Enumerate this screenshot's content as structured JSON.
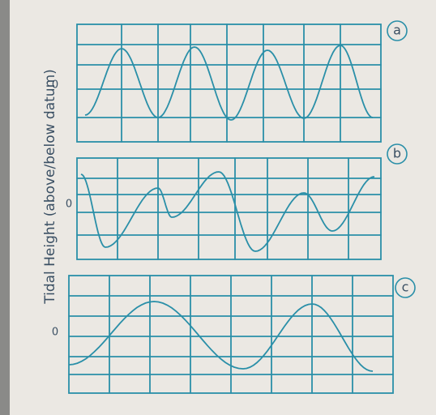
{
  "y_axis_label": "Tidal Height (above/below datum)",
  "panels": [
    {
      "label": "a",
      "zero_label": "0"
    },
    {
      "label": "b",
      "zero_label": "0"
    },
    {
      "label": "c",
      "zero_label": "0"
    }
  ]
}
